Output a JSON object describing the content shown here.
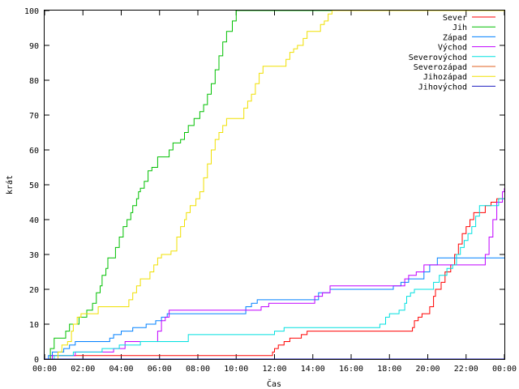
{
  "chart_data": {
    "type": "line",
    "title": "",
    "xlabel": "Čas",
    "ylabel": "krát",
    "xlim": [
      0,
      24
    ],
    "ylim": [
      0,
      100
    ],
    "grid": false,
    "legend_position": "top-right",
    "x_ticks": [
      {
        "value": 0,
        "label": "00:00"
      },
      {
        "value": 2,
        "label": "02:00"
      },
      {
        "value": 4,
        "label": "04:00"
      },
      {
        "value": 6,
        "label": "06:00"
      },
      {
        "value": 8,
        "label": "08:00"
      },
      {
        "value": 10,
        "label": "10:00"
      },
      {
        "value": 12,
        "label": "12:00"
      },
      {
        "value": 14,
        "label": "14:00"
      },
      {
        "value": 16,
        "label": "16:00"
      },
      {
        "value": 18,
        "label": "18:00"
      },
      {
        "value": 20,
        "label": "20:00"
      },
      {
        "value": 22,
        "label": "22:00"
      },
      {
        "value": 24,
        "label": "00:00"
      }
    ],
    "y_ticks": [
      0,
      10,
      20,
      30,
      40,
      50,
      60,
      70,
      80,
      90,
      100
    ],
    "series": [
      {
        "name": "Sever",
        "color": "#ff0000",
        "points": [
          [
            0,
            0
          ],
          [
            0.3,
            1
          ],
          [
            11.8,
            1
          ],
          [
            11.9,
            2
          ],
          [
            12.0,
            3
          ],
          [
            12.2,
            4
          ],
          [
            12.5,
            5
          ],
          [
            12.8,
            6
          ],
          [
            13.4,
            7
          ],
          [
            13.7,
            8
          ],
          [
            19.0,
            8
          ],
          [
            19.2,
            9
          ],
          [
            19.3,
            11
          ],
          [
            19.5,
            12
          ],
          [
            19.7,
            13
          ],
          [
            20.1,
            15
          ],
          [
            20.3,
            18
          ],
          [
            20.4,
            20
          ],
          [
            20.7,
            22
          ],
          [
            20.9,
            25
          ],
          [
            21.2,
            27
          ],
          [
            21.4,
            30
          ],
          [
            21.6,
            33
          ],
          [
            21.8,
            36
          ],
          [
            22.0,
            38
          ],
          [
            22.2,
            40
          ],
          [
            22.4,
            42
          ],
          [
            22.8,
            42
          ],
          [
            23.0,
            44
          ],
          [
            23.3,
            45
          ],
          [
            23.6,
            46
          ],
          [
            24,
            46
          ]
        ]
      },
      {
        "name": "Jih",
        "color": "#00c000",
        "points": [
          [
            0,
            0
          ],
          [
            0.3,
            3
          ],
          [
            0.5,
            6
          ],
          [
            1.0,
            6
          ],
          [
            1.1,
            8
          ],
          [
            1.3,
            10
          ],
          [
            1.7,
            10
          ],
          [
            1.8,
            12
          ],
          [
            2.1,
            12
          ],
          [
            2.2,
            14
          ],
          [
            2.5,
            16
          ],
          [
            2.7,
            19
          ],
          [
            2.9,
            21
          ],
          [
            3.0,
            24
          ],
          [
            3.2,
            26
          ],
          [
            3.3,
            29
          ],
          [
            3.5,
            29
          ],
          [
            3.7,
            32
          ],
          [
            3.9,
            35
          ],
          [
            4.1,
            38
          ],
          [
            4.3,
            40
          ],
          [
            4.5,
            42
          ],
          [
            4.6,
            44
          ],
          [
            4.8,
            46
          ],
          [
            4.9,
            48
          ],
          [
            5.0,
            49
          ],
          [
            5.2,
            51
          ],
          [
            5.4,
            54
          ],
          [
            5.6,
            55
          ],
          [
            5.9,
            58
          ],
          [
            6.3,
            58
          ],
          [
            6.5,
            60
          ],
          [
            6.7,
            62
          ],
          [
            7.1,
            63
          ],
          [
            7.3,
            65
          ],
          [
            7.5,
            67
          ],
          [
            7.8,
            69
          ],
          [
            8.1,
            71
          ],
          [
            8.3,
            73
          ],
          [
            8.5,
            76
          ],
          [
            8.7,
            79
          ],
          [
            8.9,
            83
          ],
          [
            9.1,
            87
          ],
          [
            9.3,
            91
          ],
          [
            9.5,
            94
          ],
          [
            9.8,
            97
          ],
          [
            10.0,
            100
          ],
          [
            24,
            100
          ]
        ]
      },
      {
        "name": "Západ",
        "color": "#0080ff",
        "points": [
          [
            0,
            0
          ],
          [
            0.2,
            1
          ],
          [
            0.4,
            2
          ],
          [
            1.0,
            3
          ],
          [
            1.3,
            4
          ],
          [
            1.6,
            5
          ],
          [
            3.2,
            5
          ],
          [
            3.4,
            6
          ],
          [
            3.6,
            7
          ],
          [
            4.0,
            8
          ],
          [
            4.3,
            8
          ],
          [
            4.6,
            9
          ],
          [
            5.0,
            9
          ],
          [
            5.3,
            10
          ],
          [
            5.8,
            11
          ],
          [
            6.1,
            12
          ],
          [
            6.4,
            13
          ],
          [
            10.2,
            13
          ],
          [
            10.5,
            15
          ],
          [
            10.8,
            16
          ],
          [
            11.1,
            17
          ],
          [
            13.9,
            17
          ],
          [
            14.3,
            19
          ],
          [
            14.6,
            19
          ],
          [
            14.9,
            20
          ],
          [
            18.0,
            20
          ],
          [
            18.2,
            21
          ],
          [
            18.6,
            22
          ],
          [
            19.0,
            23
          ],
          [
            19.5,
            23
          ],
          [
            19.8,
            25
          ],
          [
            20.1,
            27
          ],
          [
            20.5,
            29
          ],
          [
            24,
            29
          ]
        ]
      },
      {
        "name": "Východ",
        "color": "#c000ff",
        "points": [
          [
            0,
            0
          ],
          [
            0.4,
            1
          ],
          [
            1.2,
            1
          ],
          [
            1.6,
            2
          ],
          [
            3.6,
            3
          ],
          [
            4.2,
            5
          ],
          [
            5.6,
            5
          ],
          [
            5.9,
            8
          ],
          [
            6.1,
            11
          ],
          [
            6.3,
            12
          ],
          [
            6.5,
            14
          ],
          [
            11.0,
            14
          ],
          [
            11.3,
            15
          ],
          [
            11.7,
            16
          ],
          [
            13.6,
            16
          ],
          [
            14.1,
            18
          ],
          [
            14.5,
            19
          ],
          [
            14.9,
            21
          ],
          [
            18.4,
            21
          ],
          [
            18.8,
            23
          ],
          [
            19.0,
            24
          ],
          [
            19.4,
            25
          ],
          [
            19.8,
            27
          ],
          [
            22.8,
            27
          ],
          [
            23.0,
            30
          ],
          [
            23.2,
            35
          ],
          [
            23.4,
            40
          ],
          [
            23.6,
            45
          ],
          [
            23.9,
            48
          ],
          [
            24,
            49
          ]
        ]
      },
      {
        "name": "Severovýchod",
        "color": "#00e0e0",
        "points": [
          [
            0,
            0
          ],
          [
            0.5,
            1
          ],
          [
            1.5,
            2
          ],
          [
            3.0,
            3
          ],
          [
            3.9,
            4
          ],
          [
            4.8,
            4
          ],
          [
            5.0,
            5
          ],
          [
            7.2,
            5
          ],
          [
            7.5,
            7
          ],
          [
            11.8,
            7
          ],
          [
            12.0,
            8
          ],
          [
            12.5,
            9
          ],
          [
            17.3,
            9
          ],
          [
            17.5,
            10
          ],
          [
            17.8,
            12
          ],
          [
            18.0,
            13
          ],
          [
            18.5,
            14
          ],
          [
            18.8,
            16
          ],
          [
            18.9,
            18
          ],
          [
            19.1,
            19
          ],
          [
            19.3,
            20
          ],
          [
            20.1,
            20
          ],
          [
            20.3,
            22
          ],
          [
            20.6,
            24
          ],
          [
            21.0,
            26
          ],
          [
            21.3,
            27
          ],
          [
            21.5,
            30
          ],
          [
            21.7,
            32
          ],
          [
            21.9,
            34
          ],
          [
            22.1,
            36
          ],
          [
            22.3,
            38
          ],
          [
            22.5,
            41
          ],
          [
            22.7,
            44
          ],
          [
            23.4,
            44
          ],
          [
            23.7,
            46
          ],
          [
            24,
            46
          ]
        ]
      },
      {
        "name": "Severozápad",
        "color": "#e06020",
        "points": [
          [
            0,
            0
          ],
          [
            24,
            0
          ]
        ]
      },
      {
        "name": "Jihozápad",
        "color": "#f0e000",
        "points": [
          [
            0,
            0
          ],
          [
            0.7,
            2
          ],
          [
            0.9,
            4
          ],
          [
            1.2,
            5
          ],
          [
            1.4,
            8
          ],
          [
            1.5,
            10
          ],
          [
            1.7,
            12
          ],
          [
            1.9,
            13
          ],
          [
            2.6,
            13
          ],
          [
            2.8,
            15
          ],
          [
            4.2,
            15
          ],
          [
            4.4,
            17
          ],
          [
            4.6,
            19
          ],
          [
            4.8,
            21
          ],
          [
            5.0,
            23
          ],
          [
            5.3,
            23
          ],
          [
            5.5,
            25
          ],
          [
            5.7,
            27
          ],
          [
            5.9,
            29
          ],
          [
            6.1,
            30
          ],
          [
            6.6,
            31
          ],
          [
            6.9,
            35
          ],
          [
            7.1,
            38
          ],
          [
            7.3,
            40
          ],
          [
            7.4,
            42
          ],
          [
            7.6,
            44
          ],
          [
            7.9,
            46
          ],
          [
            8.1,
            48
          ],
          [
            8.3,
            52
          ],
          [
            8.5,
            56
          ],
          [
            8.7,
            60
          ],
          [
            8.9,
            63
          ],
          [
            9.1,
            65
          ],
          [
            9.3,
            67
          ],
          [
            9.5,
            69
          ],
          [
            10.2,
            69
          ],
          [
            10.4,
            72
          ],
          [
            10.6,
            74
          ],
          [
            10.8,
            76
          ],
          [
            11.0,
            79
          ],
          [
            11.2,
            82
          ],
          [
            11.4,
            84
          ],
          [
            11.5,
            84
          ],
          [
            12.3,
            84
          ],
          [
            12.6,
            86
          ],
          [
            12.8,
            88
          ],
          [
            13.0,
            89
          ],
          [
            13.2,
            90
          ],
          [
            13.5,
            92
          ],
          [
            13.7,
            94
          ],
          [
            14.2,
            94
          ],
          [
            14.4,
            96
          ],
          [
            14.6,
            97
          ],
          [
            14.8,
            99
          ],
          [
            15.0,
            100
          ],
          [
            24,
            100
          ]
        ]
      },
      {
        "name": "Jihovýchod",
        "color": "#2020c0",
        "points": [
          [
            0,
            0
          ],
          [
            24,
            0
          ]
        ]
      }
    ]
  }
}
